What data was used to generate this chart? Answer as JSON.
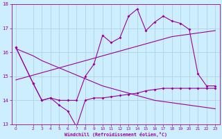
{
  "xlabel": "Windchill (Refroidissement éolien,°C)",
  "background_color": "#cceeff",
  "grid_color": "#aaccdd",
  "line_color": "#990099",
  "x": [
    0,
    1,
    2,
    3,
    4,
    5,
    6,
    7,
    8,
    9,
    10,
    11,
    12,
    13,
    14,
    15,
    16,
    17,
    18,
    19,
    20,
    21,
    22,
    23
  ],
  "windchill": [
    16.2,
    null,
    14.7,
    14.0,
    14.1,
    13.8,
    13.55,
    12.9,
    14.0,
    14.1,
    14.1,
    14.15,
    14.2,
    14.25,
    14.3,
    14.4,
    14.45,
    14.5,
    14.5,
    14.5,
    14.5,
    14.5,
    14.5,
    14.5
  ],
  "temp": [
    16.2,
    null,
    14.7,
    14.0,
    14.1,
    14.0,
    14.0,
    14.0,
    15.0,
    15.5,
    16.7,
    16.4,
    16.6,
    17.5,
    17.8,
    16.9,
    17.25,
    17.5,
    17.3,
    17.2,
    16.95,
    15.1,
    14.6,
    14.6
  ],
  "trend1": [
    14.85,
    14.95,
    15.05,
    15.15,
    15.25,
    15.35,
    15.45,
    15.55,
    15.65,
    15.75,
    15.85,
    15.95,
    16.05,
    16.15,
    16.25,
    16.35,
    16.45,
    16.55,
    16.65,
    16.7,
    16.75,
    16.8,
    16.85,
    16.9
  ],
  "trend2": [
    16.15,
    16.0,
    15.85,
    15.65,
    15.5,
    15.35,
    15.2,
    15.05,
    14.9,
    14.75,
    14.6,
    14.5,
    14.4,
    14.3,
    14.2,
    14.1,
    14.0,
    13.95,
    13.9,
    13.85,
    13.8,
    13.75,
    13.7,
    13.65
  ],
  "ylim": [
    13,
    18
  ],
  "xlim": [
    -0.5,
    23.5
  ],
  "yticks": [
    13,
    14,
    15,
    16,
    17,
    18
  ],
  "xticks": [
    0,
    2,
    3,
    4,
    5,
    6,
    7,
    8,
    9,
    10,
    11,
    12,
    13,
    14,
    15,
    16,
    17,
    18,
    19,
    20,
    21,
    22,
    23
  ]
}
